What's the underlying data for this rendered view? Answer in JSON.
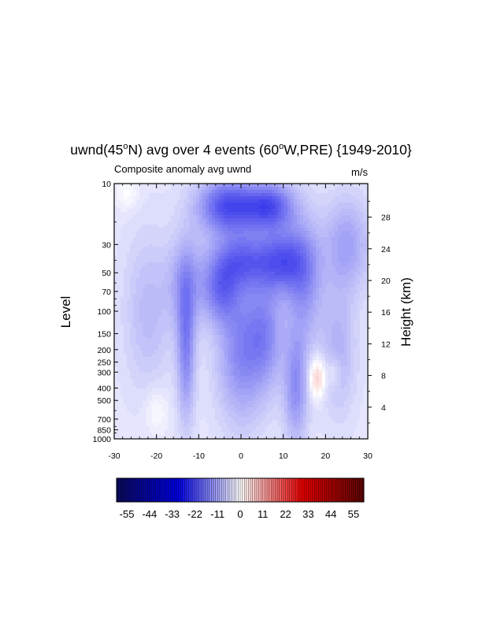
{
  "chart_data": {
    "type": "heatmap",
    "title": {
      "parts": [
        "uwnd(45",
        "o",
        "N) avg over 4 events (60",
        "o",
        "W,PRE) {1949-2010}"
      ]
    },
    "subtitle_left": "Composite anomaly avg uwnd",
    "subtitle_right": "m/s",
    "ylabel_left": "Level",
    "ylabel_right": "Height (km)",
    "y_axis": {
      "scale": "log-pressure",
      "range": [
        1000,
        10
      ],
      "ticks": [
        10,
        30,
        50,
        70,
        100,
        150,
        200,
        250,
        300,
        400,
        500,
        700,
        850,
        1000
      ]
    },
    "y_axis_right": {
      "ticks": [
        4,
        8,
        12,
        16,
        20,
        24,
        28
      ]
    },
    "x_axis": {
      "range": [
        -30,
        30
      ],
      "ticks": [
        -30,
        -20,
        -10,
        0,
        10,
        20,
        30
      ]
    },
    "colorbar": {
      "range": [
        -60,
        60
      ],
      "levels": 120,
      "ticks": [
        -55,
        -44,
        -33,
        -22,
        -11,
        0,
        11,
        22,
        33,
        44,
        55
      ],
      "colors": {
        "low": "#0a0a5a",
        "mid_low": "#0000e6",
        "center": "#ffffff",
        "mid_high": "#e60000",
        "high": "#5a0505"
      }
    },
    "features": [
      {
        "x": -3,
        "p": 15,
        "value": -18,
        "sx": 5,
        "sy": 0.35
      },
      {
        "x": 7,
        "p": 15,
        "value": -16,
        "sx": 4,
        "sy": 0.3
      },
      {
        "x": 10,
        "p": 40,
        "value": -14,
        "sx": 4,
        "sy": 0.4
      },
      {
        "x": 0,
        "p": 40,
        "value": -13,
        "sx": 5,
        "sy": 0.35
      },
      {
        "x": -5,
        "p": 70,
        "value": -11,
        "sx": 3,
        "sy": 0.4
      },
      {
        "x": -13,
        "p": 200,
        "value": -11,
        "sx": 1.5,
        "sy": 0.9
      },
      {
        "x": -13,
        "p": 60,
        "value": -8,
        "sx": 3,
        "sy": 0.6
      },
      {
        "x": 0,
        "p": 200,
        "value": -11,
        "sx": 4,
        "sy": 0.9
      },
      {
        "x": 6,
        "p": 150,
        "value": -9,
        "sx": 3,
        "sy": 0.7
      },
      {
        "x": 13,
        "p": 400,
        "value": -10,
        "sx": 2,
        "sy": 0.7
      },
      {
        "x": 15,
        "p": 60,
        "value": -9,
        "sx": 3,
        "sy": 0.8
      },
      {
        "x": 25,
        "p": 30,
        "value": -8,
        "sx": 4,
        "sy": 0.6
      },
      {
        "x": -22,
        "p": 100,
        "value": -5,
        "sx": 4,
        "sy": 1.0
      },
      {
        "x": 23,
        "p": 200,
        "value": -6,
        "sx": 3,
        "sy": 0.8
      },
      {
        "x": 18,
        "p": 330,
        "value": 10,
        "sx": 1.4,
        "sy": 0.25
      },
      {
        "x": 22,
        "p": 300,
        "value": 4,
        "sx": 1.2,
        "sy": 0.2
      },
      {
        "x": -27,
        "p": 12,
        "value": 3,
        "sx": 2,
        "sy": 0.2
      },
      {
        "x": -20,
        "p": 600,
        "value": 3,
        "sx": 2,
        "sy": 0.3
      }
    ],
    "background_value": -3
  }
}
